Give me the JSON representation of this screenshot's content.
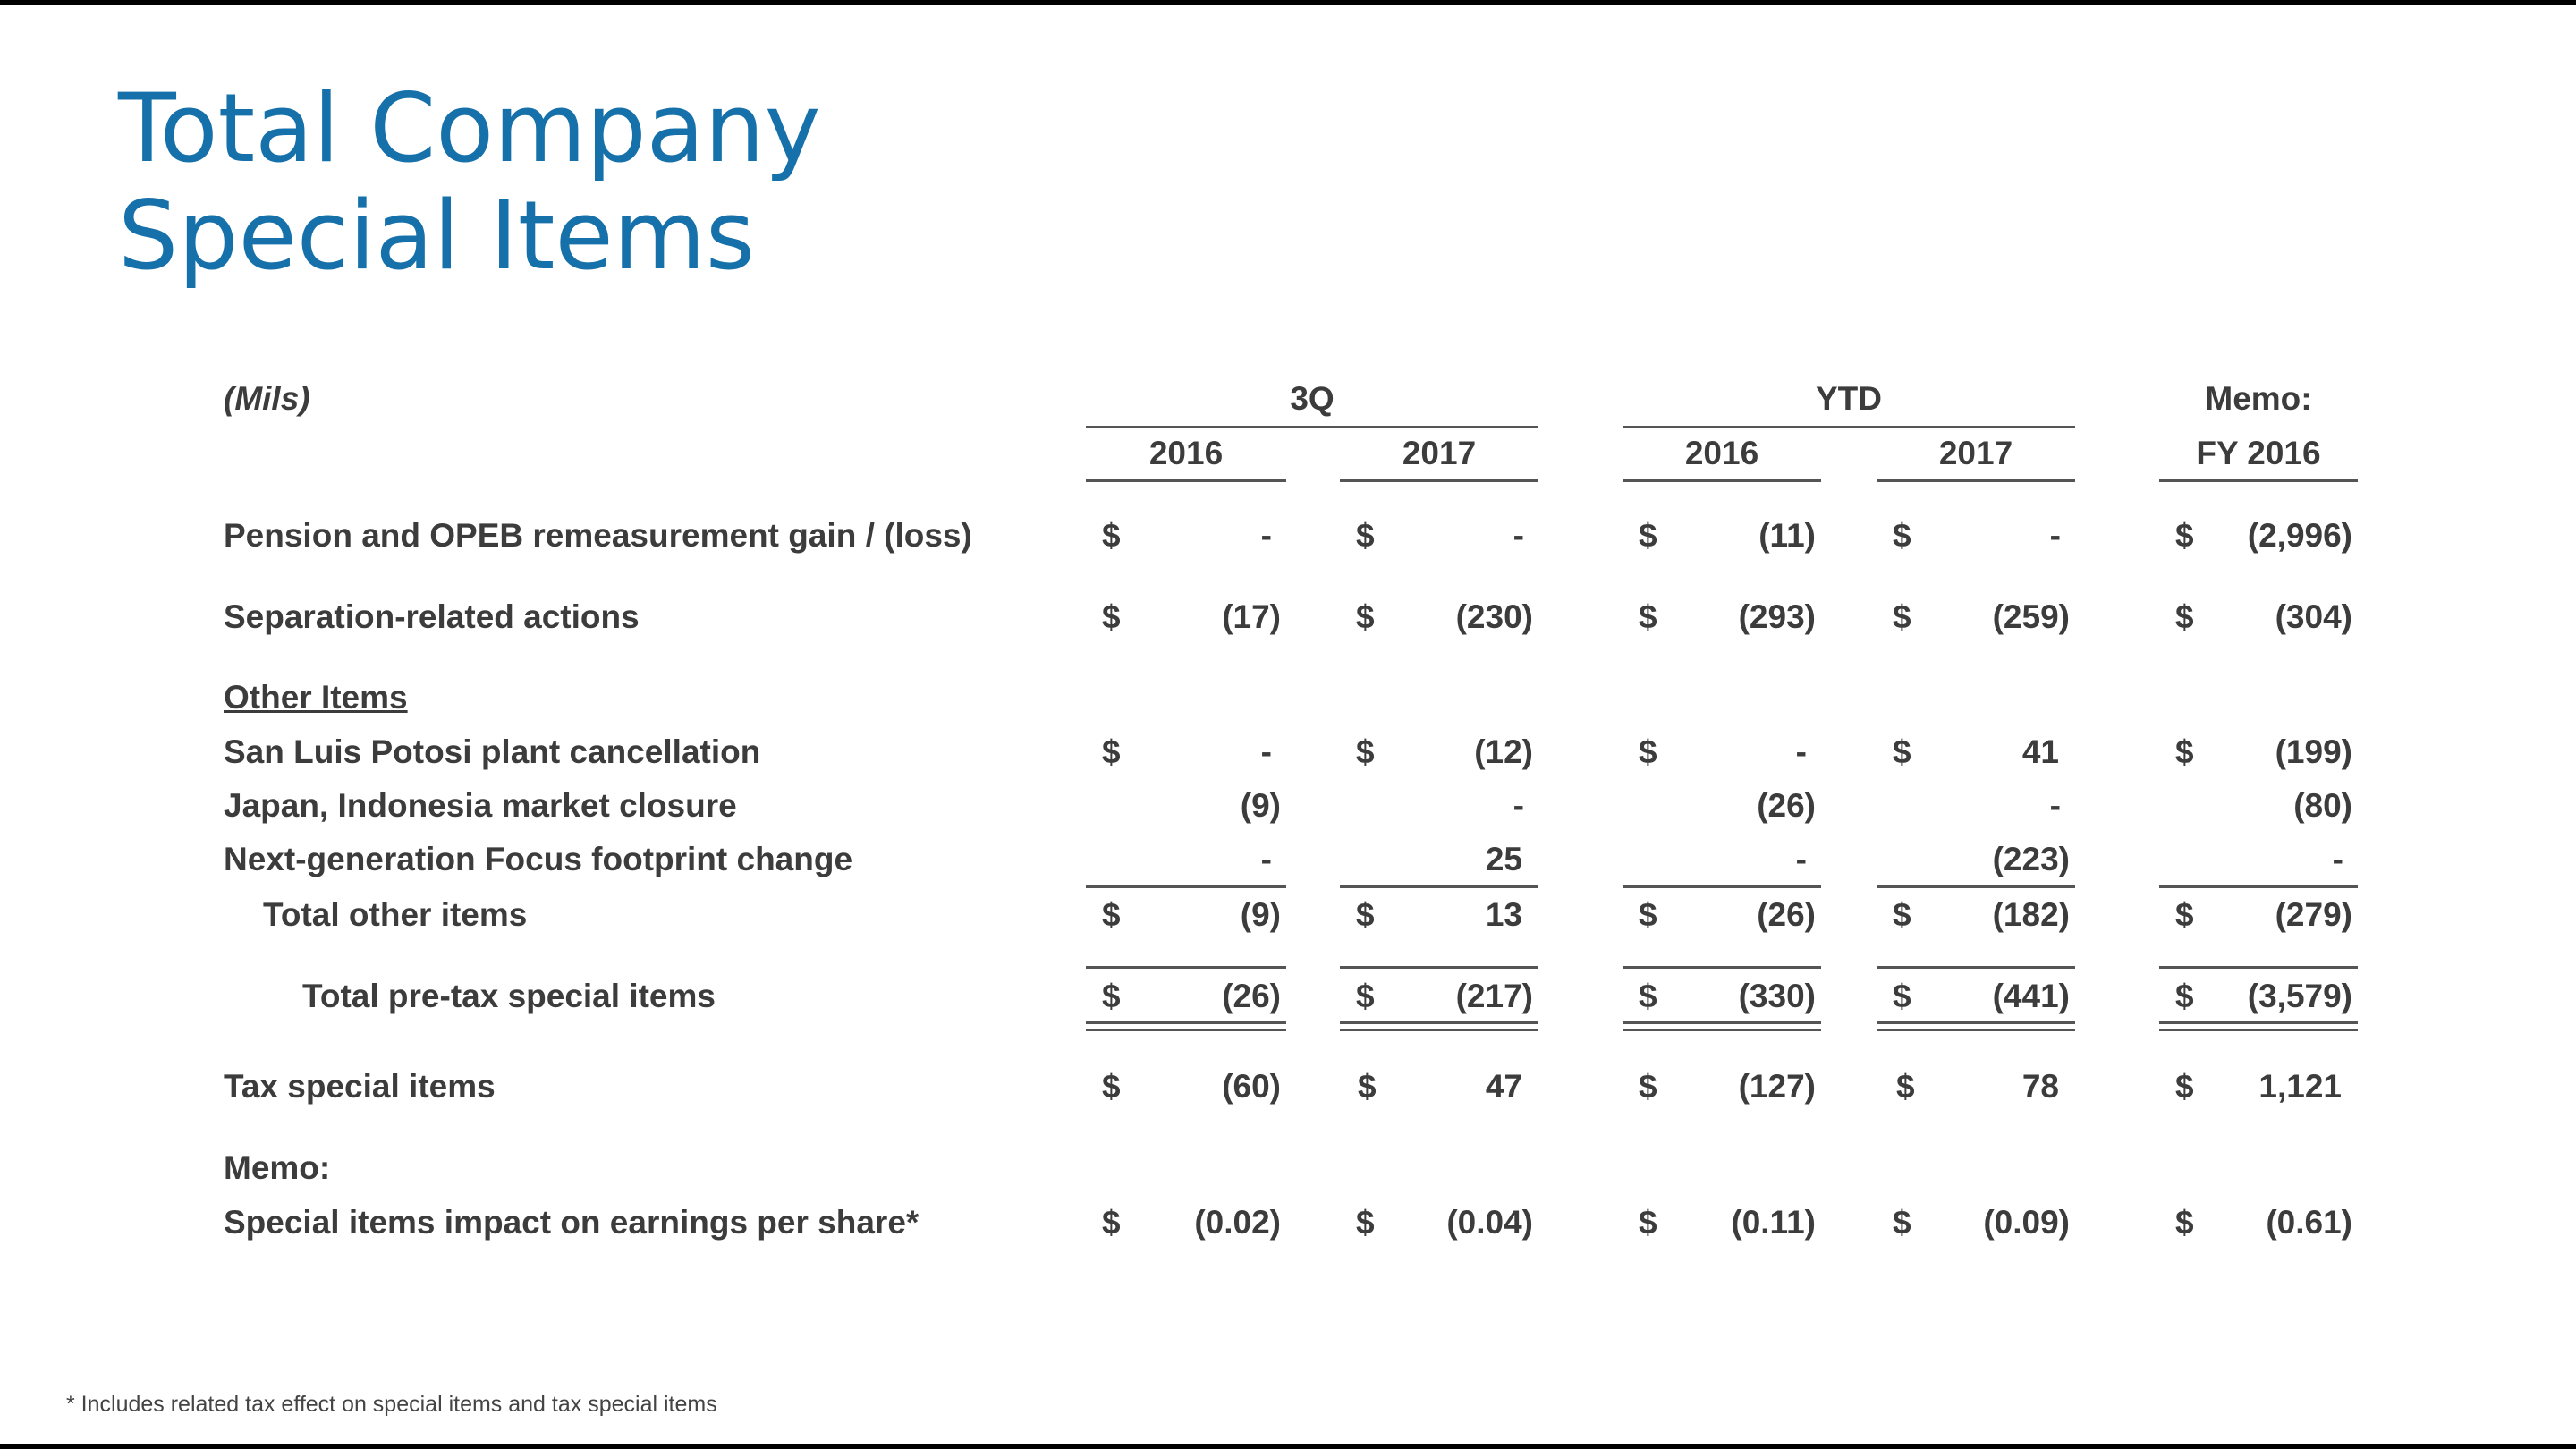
{
  "title": {
    "line1": "Total Company",
    "line2": "Special Items"
  },
  "table": {
    "units_label": "(Mils)",
    "groups": [
      {
        "label": "3Q"
      },
      {
        "label": "YTD"
      },
      {
        "label": "Memo:"
      }
    ],
    "columns": [
      "2016",
      "2017",
      "2016",
      "2017",
      "FY 2016"
    ],
    "rows": {
      "pension": {
        "label": "Pension and OPEB remeasurement gain / (loss)",
        "values": [
          "-",
          "-",
          "(11)",
          "-",
          "(2,996)"
        ]
      },
      "separation": {
        "label": "Separation-related actions",
        "values": [
          "(17)",
          "(230)",
          "(293)",
          "(259)",
          "(304)"
        ]
      },
      "other_items_header": {
        "label": "Other Items"
      },
      "san_luis": {
        "label": "San Luis Potosi plant cancellation",
        "values": [
          "-",
          "(12)",
          "-",
          "41",
          "(199)"
        ]
      },
      "japan": {
        "label": "Japan, Indonesia market closure",
        "values": [
          "(9)",
          "-",
          "(26)",
          "-",
          "(80)"
        ]
      },
      "focus": {
        "label": "Next-generation Focus footprint change",
        "values": [
          "-",
          "25",
          "-",
          "(223)",
          "-"
        ]
      },
      "total_other": {
        "label": "Total other items",
        "values": [
          "(9)",
          "13",
          "(26)",
          "(182)",
          "(279)"
        ]
      },
      "total_pretax": {
        "label": "Total pre-tax special items",
        "values": [
          "(26)",
          "(217)",
          "(330)",
          "(441)",
          "(3,579)"
        ]
      },
      "tax": {
        "label": "Tax special items",
        "values": [
          "(60)",
          "47",
          "(127)",
          "78",
          "1,121"
        ]
      },
      "memo_header": {
        "label": "Memo:"
      },
      "eps": {
        "label": "Special items impact on earnings per share*",
        "values": [
          "(0.02)",
          "(0.04)",
          "(0.11)",
          "(0.09)",
          "(0.61)"
        ]
      }
    },
    "currency_symbol": "$"
  },
  "footnote": "*  Includes related tax effect on special items and tax special items"
}
